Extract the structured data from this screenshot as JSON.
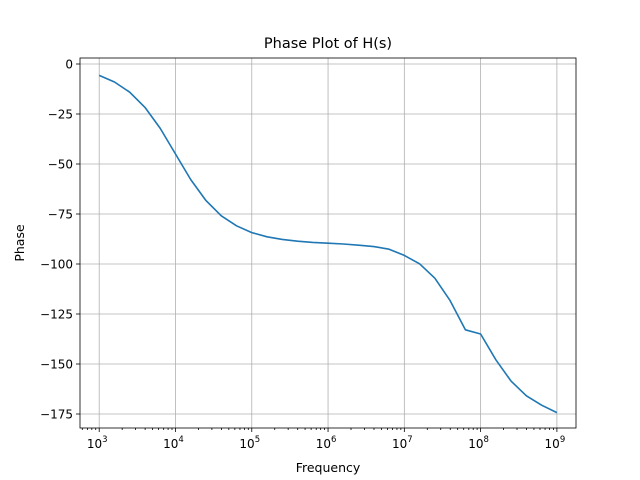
{
  "chart_data": {
    "type": "line",
    "title": "Phase Plot of H(s)",
    "xlabel": "Frequency",
    "ylabel": "Phase",
    "xscale": "log",
    "xlim": [
      560,
      1780000000
    ],
    "ylim": [
      -182,
      3
    ],
    "grid": true,
    "x_ticks": [
      {
        "value": 1000,
        "base": "10",
        "exp": "3"
      },
      {
        "value": 10000,
        "base": "10",
        "exp": "4"
      },
      {
        "value": 100000,
        "base": "10",
        "exp": "5"
      },
      {
        "value": 1000000,
        "base": "10",
        "exp": "6"
      },
      {
        "value": 10000000,
        "base": "10",
        "exp": "7"
      },
      {
        "value": 100000000,
        "base": "10",
        "exp": "8"
      },
      {
        "value": 1000000000,
        "base": "10",
        "exp": "9"
      }
    ],
    "y_ticks": [
      {
        "value": 0,
        "label": "0"
      },
      {
        "value": -25,
        "label": "−25"
      },
      {
        "value": -50,
        "label": "−50"
      },
      {
        "value": -75,
        "label": "−75"
      },
      {
        "value": -100,
        "label": "−100"
      },
      {
        "value": -125,
        "label": "−125"
      },
      {
        "value": -150,
        "label": "−150"
      },
      {
        "value": -175,
        "label": "−175"
      }
    ],
    "series": [
      {
        "color": "#1f77b4",
        "x": [
          1000,
          1585,
          2512,
          3981,
          6310,
          10000,
          15849,
          25119,
          39811,
          63096,
          100000,
          158489,
          251189,
          398107,
          630957,
          1000000,
          1584893,
          2511886,
          3981072,
          6309573,
          10000000,
          15848932,
          25118864,
          39810717,
          63095734,
          100000000,
          158489319,
          251188643,
          398107171,
          630957344,
          1000000000
        ],
        "y": [
          -5.7,
          -9.0,
          -14.1,
          -21.7,
          -32.2,
          -45.0,
          -57.8,
          -68.3,
          -75.9,
          -80.9,
          -84.3,
          -86.4,
          -87.7,
          -88.6,
          -89.2,
          -89.6,
          -90.0,
          -90.6,
          -91.3,
          -92.6,
          -95.7,
          -99.9,
          -107.1,
          -118.3,
          -132.9,
          -135.0,
          -147.9,
          -158.6,
          -165.9,
          -170.6,
          -174.3
        ]
      }
    ]
  }
}
